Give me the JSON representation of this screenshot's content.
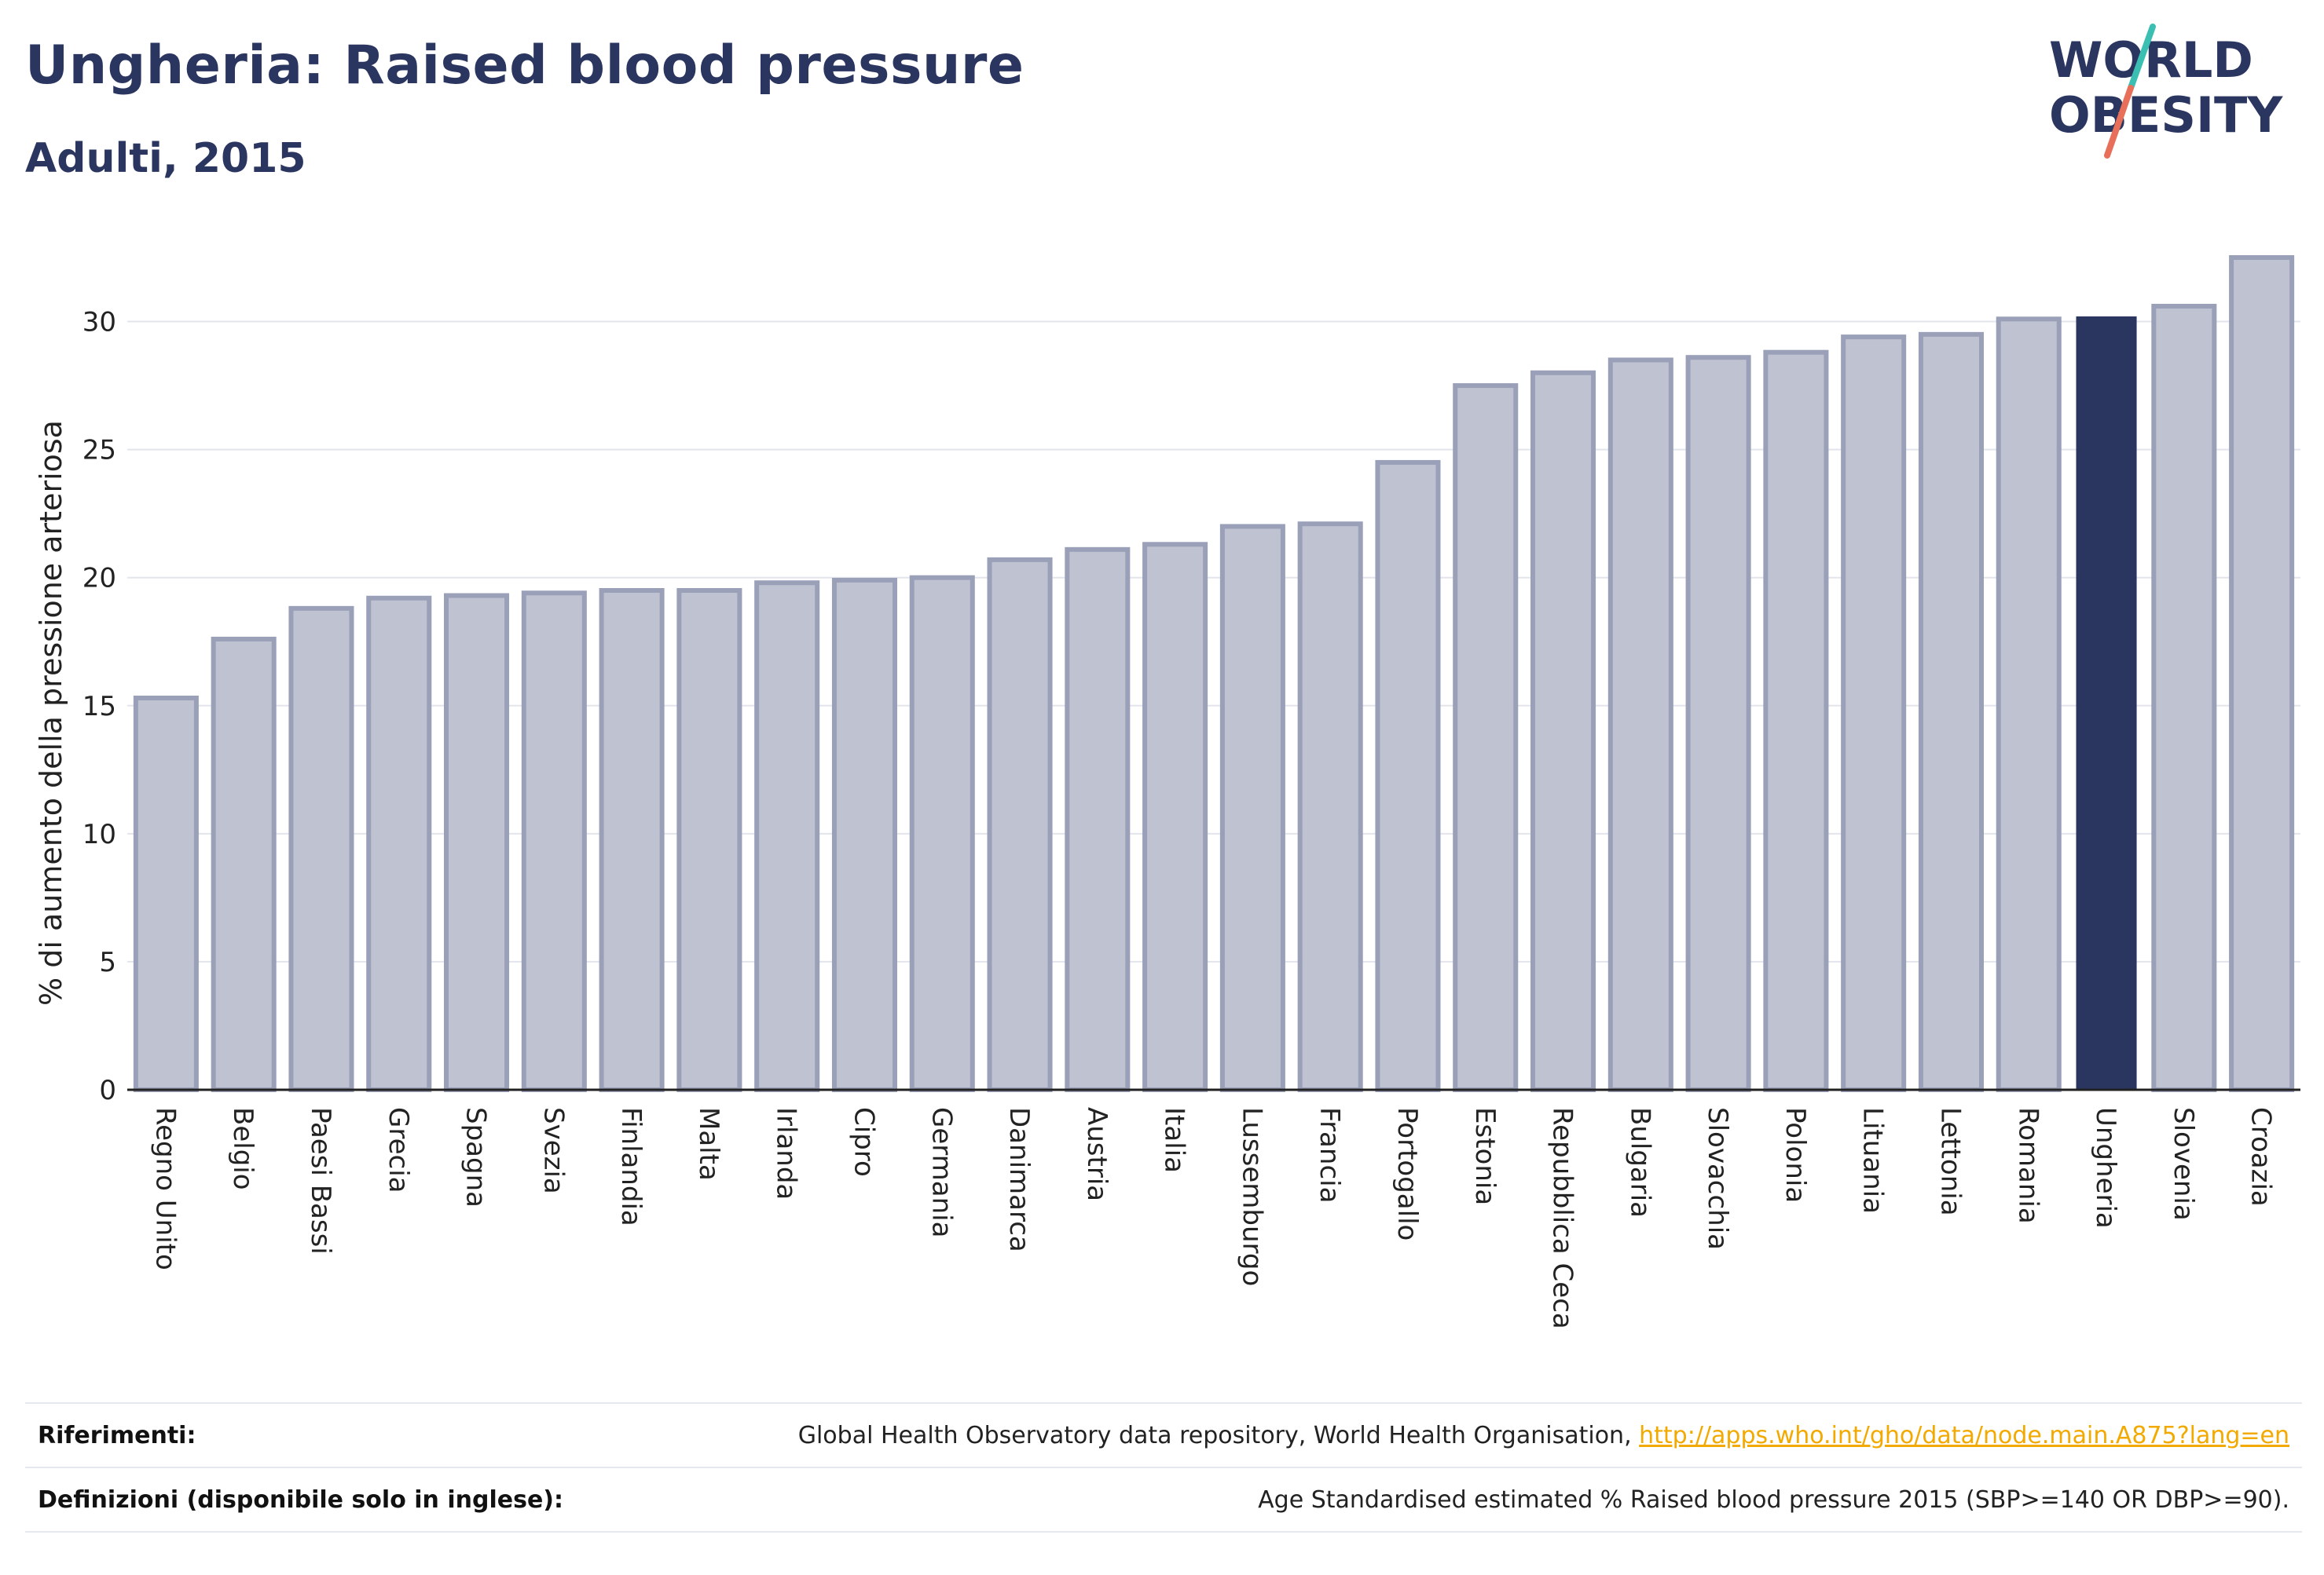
{
  "header": {
    "title": "Ungheria: Raised blood pressure",
    "subtitle": "Adulti, 2015"
  },
  "logo": {
    "line1": "WORLD",
    "line2": "OBESITY",
    "colors": {
      "text": "#2a3560",
      "slash_top": "#3bbfb2",
      "slash_bottom": "#e8705a"
    }
  },
  "chart_data": {
    "type": "bar",
    "ylabel": "% di aumento della pressione arteriosa",
    "xlabel": "",
    "ylim": [
      0,
      32.5
    ],
    "yticks": [
      0,
      5,
      10,
      15,
      20,
      25,
      30
    ],
    "grid": true,
    "highlight": "Ungheria",
    "colors": {
      "bar": "#bfc2d0",
      "bar_edge": "#9aa0b8",
      "highlight": "#2a3560"
    },
    "categories": [
      "Regno Unito",
      "Belgio",
      "Paesi Bassi",
      "Grecia",
      "Spagna",
      "Svezia",
      "Finlandia",
      "Malta",
      "Irlanda",
      "Cipro",
      "Germania",
      "Danimarca",
      "Austria",
      "Italia",
      "Lussemburgo",
      "Francia",
      "Portogallo",
      "Estonia",
      "Repubblica Ceca",
      "Bulgaria",
      "Slovacchia",
      "Polonia",
      "Lituania",
      "Lettonia",
      "Romania",
      "Ungheria",
      "Slovenia",
      "Croazia"
    ],
    "values": [
      15.3,
      17.6,
      18.8,
      19.2,
      19.3,
      19.4,
      19.5,
      19.5,
      19.8,
      19.9,
      20.0,
      20.7,
      21.1,
      21.3,
      22.0,
      22.1,
      24.5,
      27.5,
      28.0,
      28.5,
      28.6,
      28.8,
      29.4,
      29.5,
      30.1,
      30.2,
      30.6,
      32.5
    ]
  },
  "footer": {
    "references_label": "Riferimenti:",
    "references_text": "Global Health Observatory data repository, World Health Organisation, ",
    "references_link": "http://apps.who.int/gho/data/node.main.A875?lang=en",
    "definitions_label": "Definizioni (disponibile solo in inglese):",
    "definitions_text": "Age Standardised estimated % Raised blood pressure 2015 (SBP>=140 OR DBP>=90)."
  }
}
